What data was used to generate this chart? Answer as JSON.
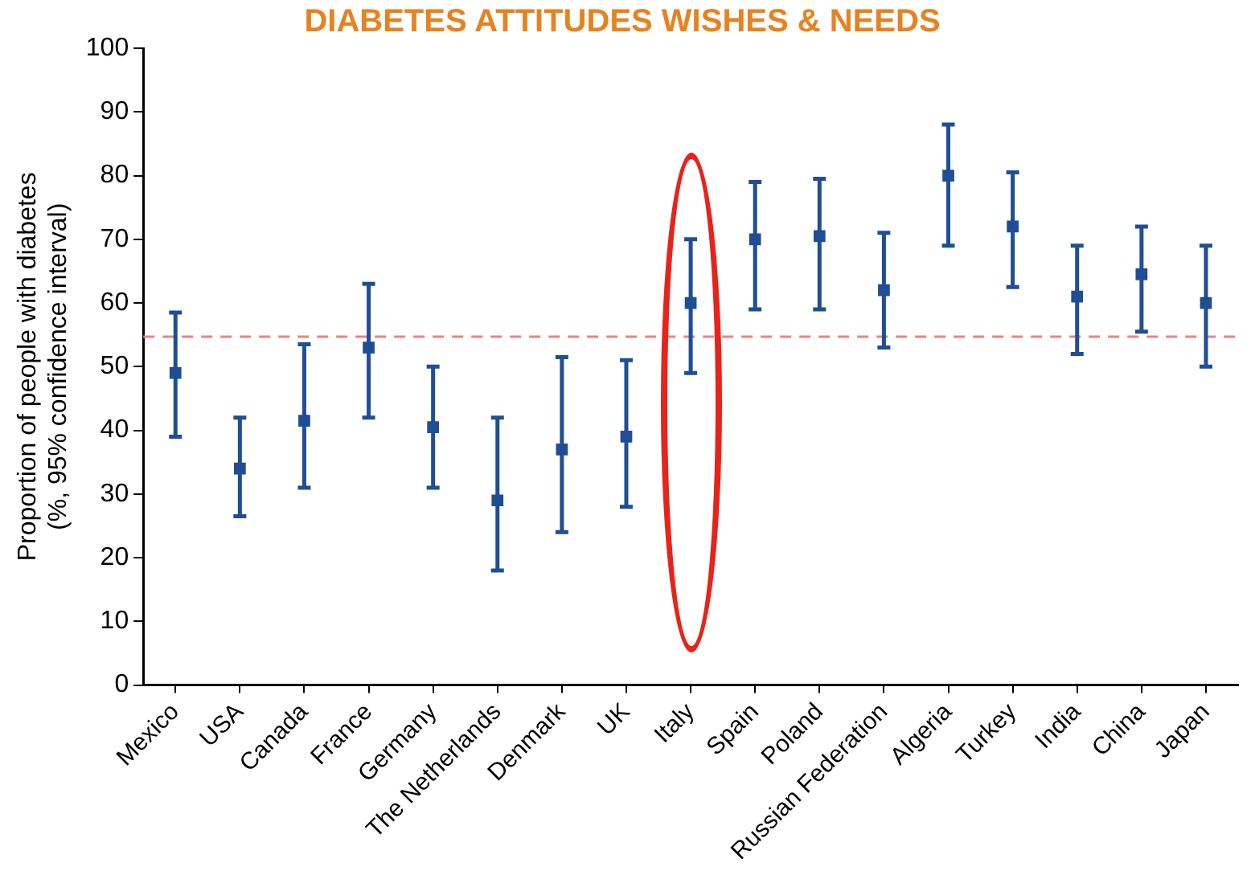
{
  "chart_data": {
    "type": "scatter",
    "title": "DIABETES ATTITUDES WISHES & NEEDS",
    "ylabel": "Proportion of people with diabetes\n(%, 95% confidence interval)",
    "categories": [
      "Mexico",
      "USA",
      "Canada",
      "France",
      "Germany",
      "The Netherlands",
      "Denmark",
      "UK",
      "Italy",
      "Spain",
      "Poland",
      "Russian Federation",
      "Algeria",
      "Turkey",
      "India",
      "China",
      "Japan"
    ],
    "series": [
      {
        "color": "#1f4e96",
        "values": [
          49,
          34,
          41.5,
          53,
          40.5,
          29,
          37,
          39,
          60,
          70,
          70.5,
          62,
          80,
          72,
          61,
          64.5,
          60
        ],
        "errors": [
          [
            39,
            58.5
          ],
          [
            26.5,
            42
          ],
          [
            31,
            53.5
          ],
          [
            42,
            63
          ],
          [
            31,
            50
          ],
          [
            18,
            42
          ],
          [
            24,
            51.5
          ],
          [
            28,
            51
          ],
          [
            49,
            70
          ],
          [
            59,
            79
          ],
          [
            59,
            79.5
          ],
          [
            53,
            71
          ],
          [
            69,
            88
          ],
          [
            62.5,
            80.5
          ],
          [
            52,
            69
          ],
          [
            55.5,
            72
          ],
          [
            50,
            69
          ]
        ]
      }
    ],
    "ylim": [
      0,
      100
    ],
    "yticks": [
      0,
      10,
      20,
      30,
      40,
      50,
      60,
      70,
      80,
      90,
      100
    ],
    "grid": false,
    "legend": false,
    "marker": "square",
    "ref_lines": [
      {
        "axis": "y",
        "value": 54.7,
        "color": "#f08080",
        "line_style": "dashed"
      }
    ]
  }
}
